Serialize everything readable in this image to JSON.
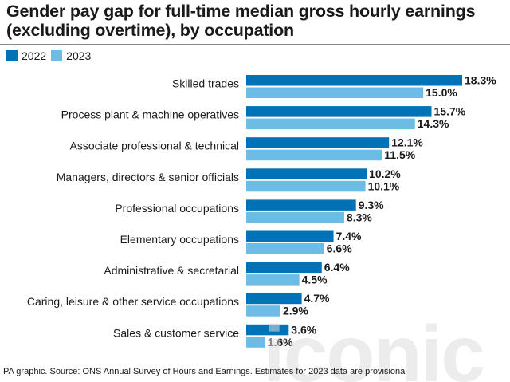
{
  "title": "Gender pay gap for full-time median gross hourly earnings (excluding overtime), by occupation",
  "legend": [
    {
      "label": "2022",
      "color": "#0072b5"
    },
    {
      "label": "2023",
      "color": "#6cbce6"
    }
  ],
  "footer": "PA graphic. Source: ONS Annual Survey of Hours and Earnings. Estimates for 2023 data are provisional",
  "watermark": "iconic",
  "chart_data": {
    "type": "bar",
    "orientation": "horizontal",
    "categories": [
      "Skilled trades",
      "Process plant & machine operatives",
      "Associate professional & technical",
      "Managers, directors & senior officials",
      "Professional occupations",
      "Elementary occupations",
      "Administrative & secretarial",
      "Caring, leisure & other service occupations",
      "Sales & customer service"
    ],
    "series": [
      {
        "name": "2022",
        "color": "#0072b5",
        "values": [
          18.3,
          15.7,
          12.1,
          10.2,
          9.3,
          7.4,
          6.4,
          4.7,
          3.6
        ],
        "labels": [
          "18.3%",
          "15.7%",
          "12.1%",
          "10.2%",
          "9.3%",
          "7.4%",
          "6.4%",
          "4.7%",
          "3.6%"
        ]
      },
      {
        "name": "2023",
        "color": "#6cbce6",
        "values": [
          15.0,
          14.3,
          11.5,
          10.1,
          8.3,
          6.6,
          4.5,
          2.9,
          1.6
        ],
        "labels": [
          "15.0%",
          "14.3%",
          "11.5%",
          "10.1%",
          "8.3%",
          "6.6%",
          "4.5%",
          "2.9%",
          "1.6%"
        ]
      }
    ],
    "unit": "%",
    "xlim": [
      0,
      18.3
    ],
    "grid": false,
    "legend_position": "top-left"
  }
}
